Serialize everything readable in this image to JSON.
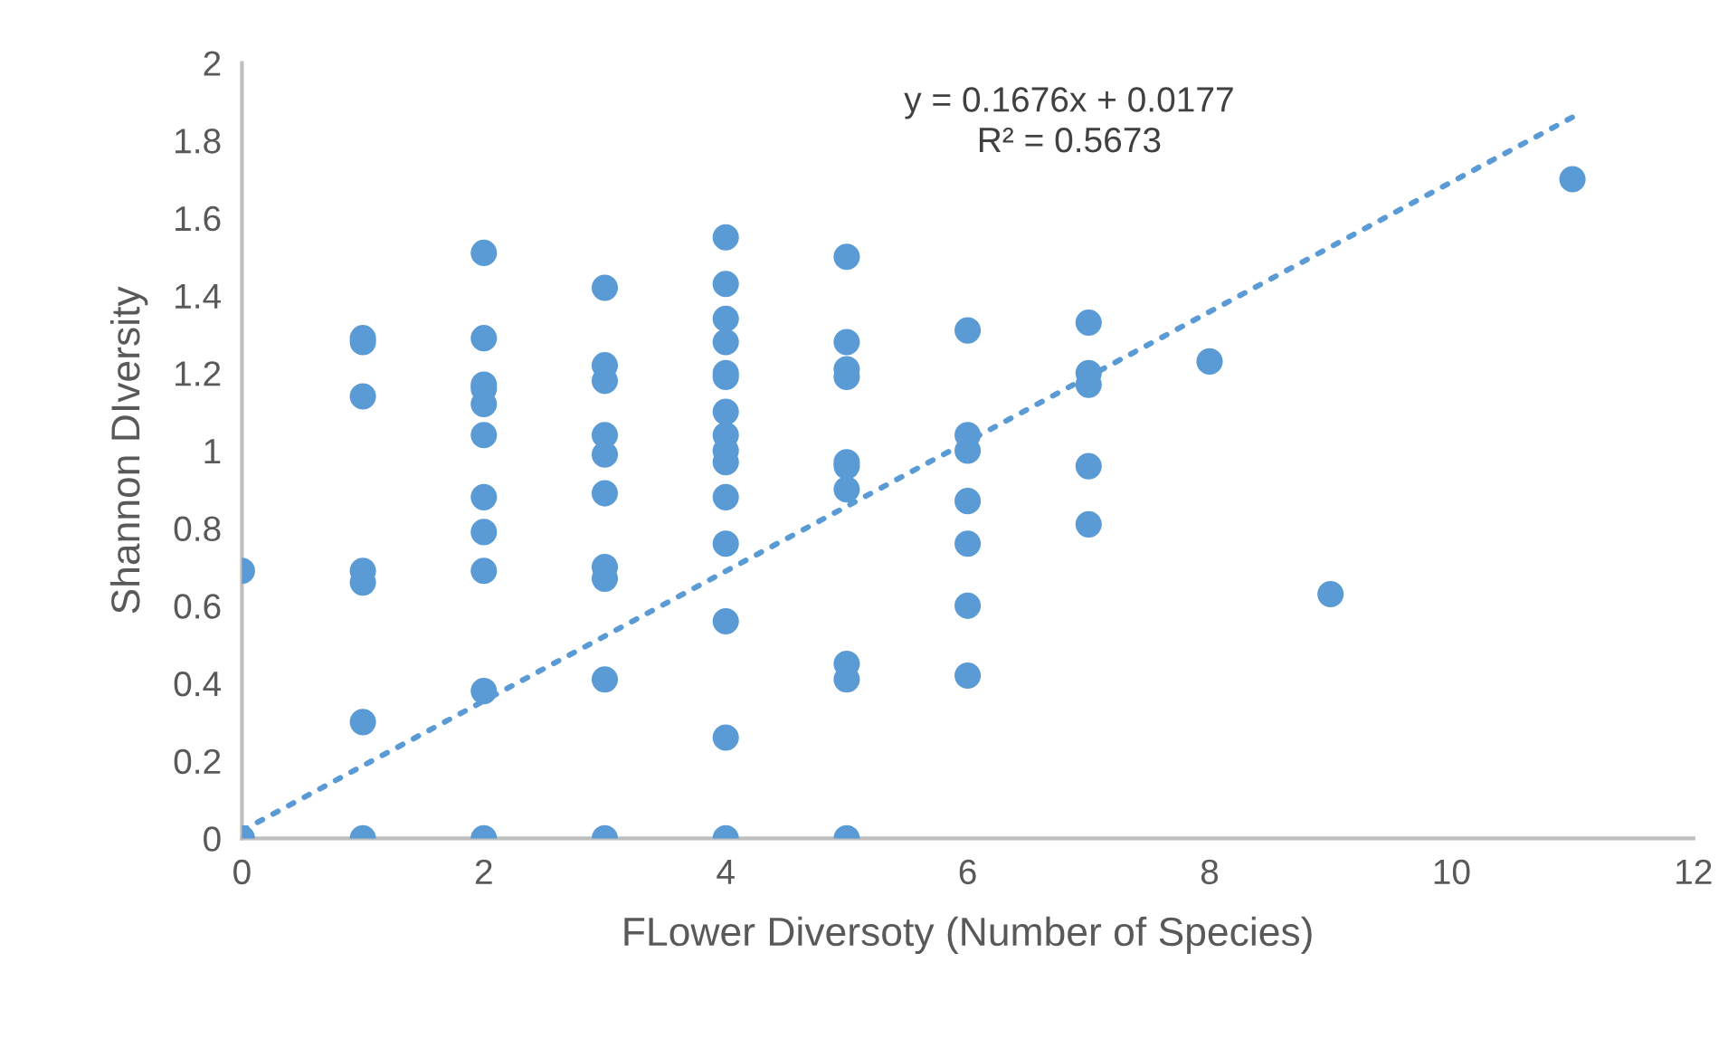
{
  "chart_data": {
    "type": "scatter",
    "xlabel": "FLower Diversoty (Number of Species)",
    "ylabel": "Shannon DIversity",
    "annotations": [
      "y = 0.1676x + 0.0177\nR² = 0.5673"
    ],
    "xlim": [
      0,
      12
    ],
    "ylim": [
      0,
      2
    ],
    "xticks": [
      0,
      2,
      4,
      6,
      8,
      10,
      12
    ],
    "yticks": [
      0,
      0.2,
      0.4,
      0.6,
      0.8,
      1,
      1.2,
      1.4,
      1.6,
      1.8,
      2
    ],
    "grid": false,
    "legend": false,
    "marker": "circle",
    "series": [
      {
        "color": "#5b9bd5",
        "x": [
          0,
          0,
          1,
          1,
          1,
          1,
          1,
          1,
          1,
          2,
          2,
          2,
          2,
          2,
          2,
          2,
          2,
          2,
          2,
          2,
          3,
          3,
          3,
          3,
          3,
          3,
          3,
          3,
          3,
          3,
          4,
          4,
          4,
          4,
          4,
          4,
          4,
          4,
          4,
          4,
          4,
          4,
          4,
          4,
          4,
          5,
          5,
          5,
          5,
          5,
          5,
          5,
          5,
          5,
          5,
          6,
          6,
          6,
          6,
          6,
          6,
          6,
          7,
          7,
          7,
          7,
          7,
          8,
          9,
          11
        ],
        "values": [
          0.69,
          0,
          1.29,
          1.28,
          1.14,
          0.69,
          0.66,
          0.3,
          0,
          1.51,
          1.29,
          1.17,
          1.16,
          1.12,
          1.04,
          0.88,
          0.79,
          0.69,
          0.38,
          0,
          1.42,
          1.22,
          1.18,
          1.04,
          0.99,
          0.89,
          0.7,
          0.67,
          0.41,
          0,
          1.55,
          1.43,
          1.34,
          1.28,
          1.2,
          1.19,
          1.1,
          1.04,
          1.0,
          0.97,
          0.88,
          0.76,
          0.56,
          0.26,
          0,
          1.5,
          1.28,
          1.21,
          1.19,
          0.97,
          0.96,
          0.9,
          0.45,
          0.41,
          0,
          1.31,
          1.04,
          1.0,
          0.87,
          0.76,
          0.6,
          0.42,
          1.33,
          1.2,
          1.17,
          0.96,
          0.81,
          1.23,
          0.63,
          1.7
        ]
      },
      {
        "type": "line",
        "color": "#5b9bd5",
        "line_style": "dotted",
        "marker": "none",
        "x": [
          0,
          11
        ],
        "values": [
          0.02,
          1.86
        ]
      }
    ]
  }
}
